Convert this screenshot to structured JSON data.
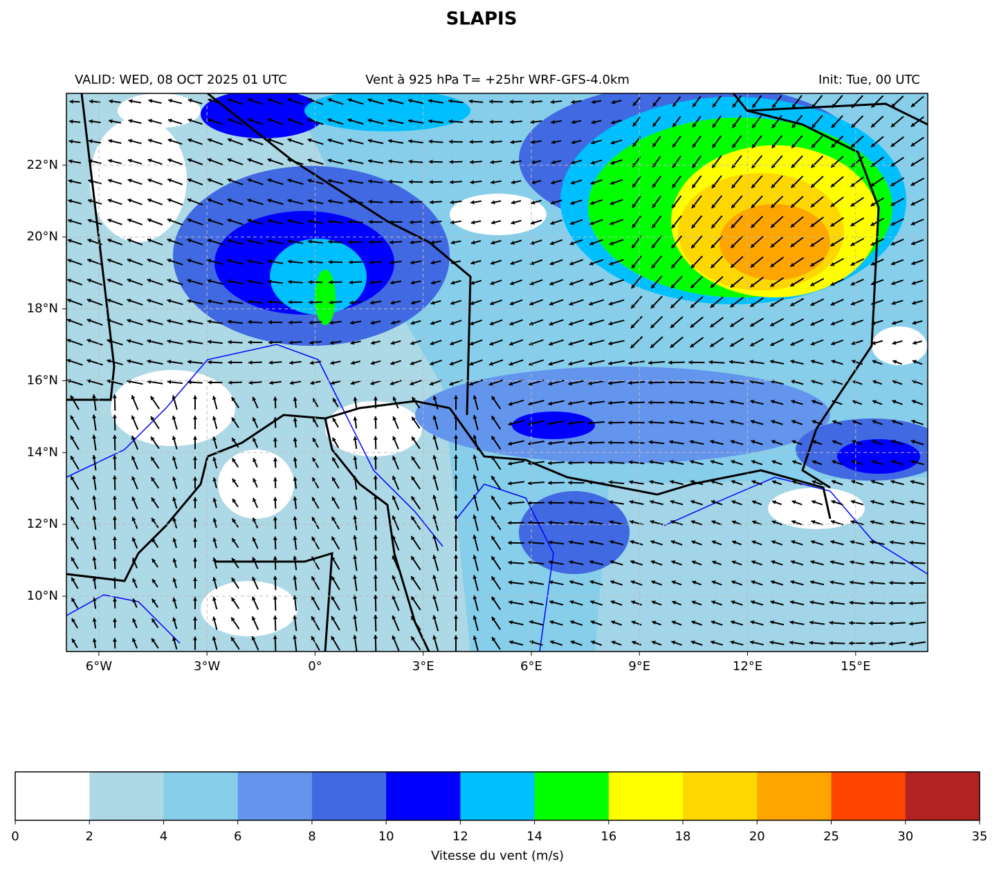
{
  "title": "SLAPIS",
  "header": {
    "left": "VALID: WED, 08 OCT 2025 01 UTC",
    "center": "Vent à 925 hPa T= +25hr  WRF-GFS-4.0km",
    "right": "Init: Tue, 00 UTC"
  },
  "map": {
    "xlim": [
      -6.9,
      17.0
    ],
    "ylim": [
      8.46,
      24.0
    ],
    "xticks": [
      {
        "value": -6,
        "label": "6°W"
      },
      {
        "value": -3,
        "label": "3°W"
      },
      {
        "value": 0,
        "label": "0°"
      },
      {
        "value": 3,
        "label": "3°E"
      },
      {
        "value": 6,
        "label": "6°E"
      },
      {
        "value": 9,
        "label": "9°E"
      },
      {
        "value": 12,
        "label": "12°E"
      },
      {
        "value": 15,
        "label": "15°E"
      }
    ],
    "yticks": [
      {
        "value": 10,
        "label": "10°N"
      },
      {
        "value": 12,
        "label": "12°N"
      },
      {
        "value": 14,
        "label": "14°N"
      },
      {
        "value": 16,
        "label": "16°N"
      },
      {
        "value": 18,
        "label": "18°N"
      },
      {
        "value": 20,
        "label": "20°N"
      },
      {
        "value": 22,
        "label": "22°N"
      }
    ],
    "grid": true
  },
  "colorbar": {
    "bounds": [
      0,
      2,
      4,
      6,
      8,
      10,
      12,
      14,
      16,
      18,
      20,
      25,
      30,
      35
    ],
    "colors": [
      "#ffffff",
      "#add8e6",
      "#87ceeb",
      "#6495ed",
      "#4169e1",
      "#0000ff",
      "#00bfff",
      "#00ff00",
      "#ffff00",
      "#ffd700",
      "#ffa500",
      "#ff4500",
      "#b22222"
    ],
    "label": "Vitesse du vent (m/s)"
  }
}
